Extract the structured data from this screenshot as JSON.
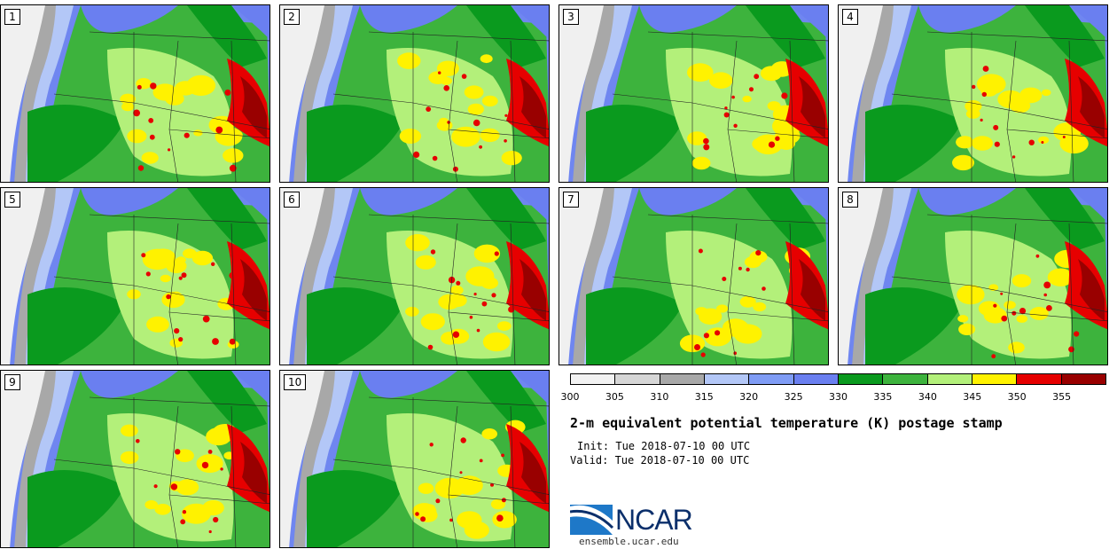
{
  "panels": [
    {
      "label": "1"
    },
    {
      "label": "2"
    },
    {
      "label": "3"
    },
    {
      "label": "4"
    },
    {
      "label": "5"
    },
    {
      "label": "6"
    },
    {
      "label": "7"
    },
    {
      "label": "8"
    },
    {
      "label": "9"
    },
    {
      "label": "10"
    }
  ],
  "legend": {
    "colors": [
      "#f2f2f2",
      "#d6d6d6",
      "#a8a8a8",
      "#b3c7f7",
      "#7f9cf5",
      "#6a7ff0",
      "#0a9a1e",
      "#3db33d",
      "#b3f07a",
      "#fff200",
      "#e60000",
      "#990000"
    ],
    "labels": [
      "300",
      "305",
      "310",
      "315",
      "320",
      "325",
      "330",
      "335",
      "340",
      "345",
      "350",
      "355"
    ]
  },
  "title": "2-m equivalent potential temperature (K) postage stamp",
  "init": "Init: Tue 2018-07-10 00 UTC",
  "valid": "Valid: Tue 2018-07-10 00 UTC",
  "logo": {
    "text": "NCAR"
  },
  "site": "ensemble.ucar.edu"
}
